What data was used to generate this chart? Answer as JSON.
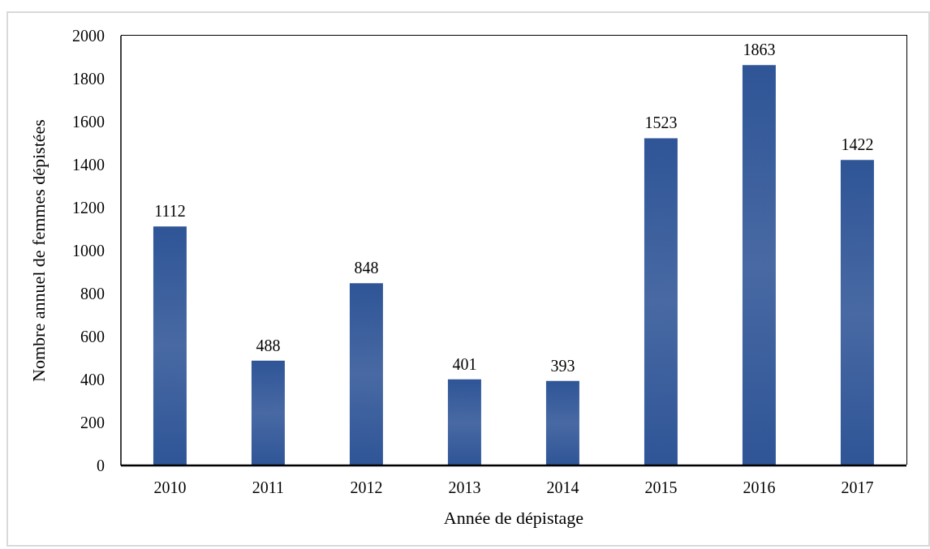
{
  "chart_data": {
    "type": "bar",
    "xlabel": "Année de dépistage",
    "ylabel": "Nombre annuel de femmes dépistées",
    "categories": [
      "2010",
      "2011",
      "2012",
      "2013",
      "2014",
      "2015",
      "2016",
      "2017"
    ],
    "values": [
      1112,
      488,
      848,
      401,
      393,
      1523,
      1863,
      1422
    ],
    "color": "#2f5597",
    "ylim": [
      0,
      2000
    ],
    "yticks": [
      0,
      200,
      400,
      600,
      800,
      1000,
      1200,
      1400,
      1600,
      1800,
      2000
    ],
    "data_labels": true
  }
}
